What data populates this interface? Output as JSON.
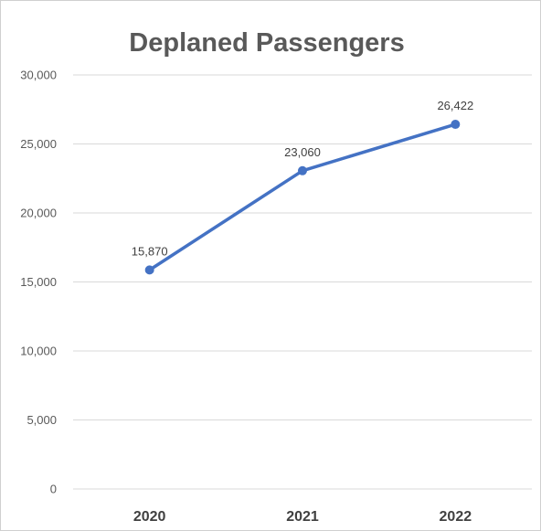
{
  "chart_data": {
    "type": "line",
    "title": "Deplaned Passengers",
    "xlabel": "",
    "ylabel": "",
    "categories": [
      "2020",
      "2021",
      "2022"
    ],
    "series": [
      {
        "values": [
          15870,
          23060,
          26422
        ],
        "labels": [
          "15,870",
          "23,060",
          "26,422"
        ],
        "color": "#4472c4"
      }
    ],
    "ylim": [
      0,
      30000
    ],
    "yticks": [
      0,
      5000,
      10000,
      15000,
      20000,
      25000,
      30000
    ],
    "ytick_labels": [
      "0",
      "5,000",
      "10,000",
      "15,000",
      "20,000",
      "25,000",
      "30,000"
    ],
    "grid": true,
    "legend": "none"
  }
}
